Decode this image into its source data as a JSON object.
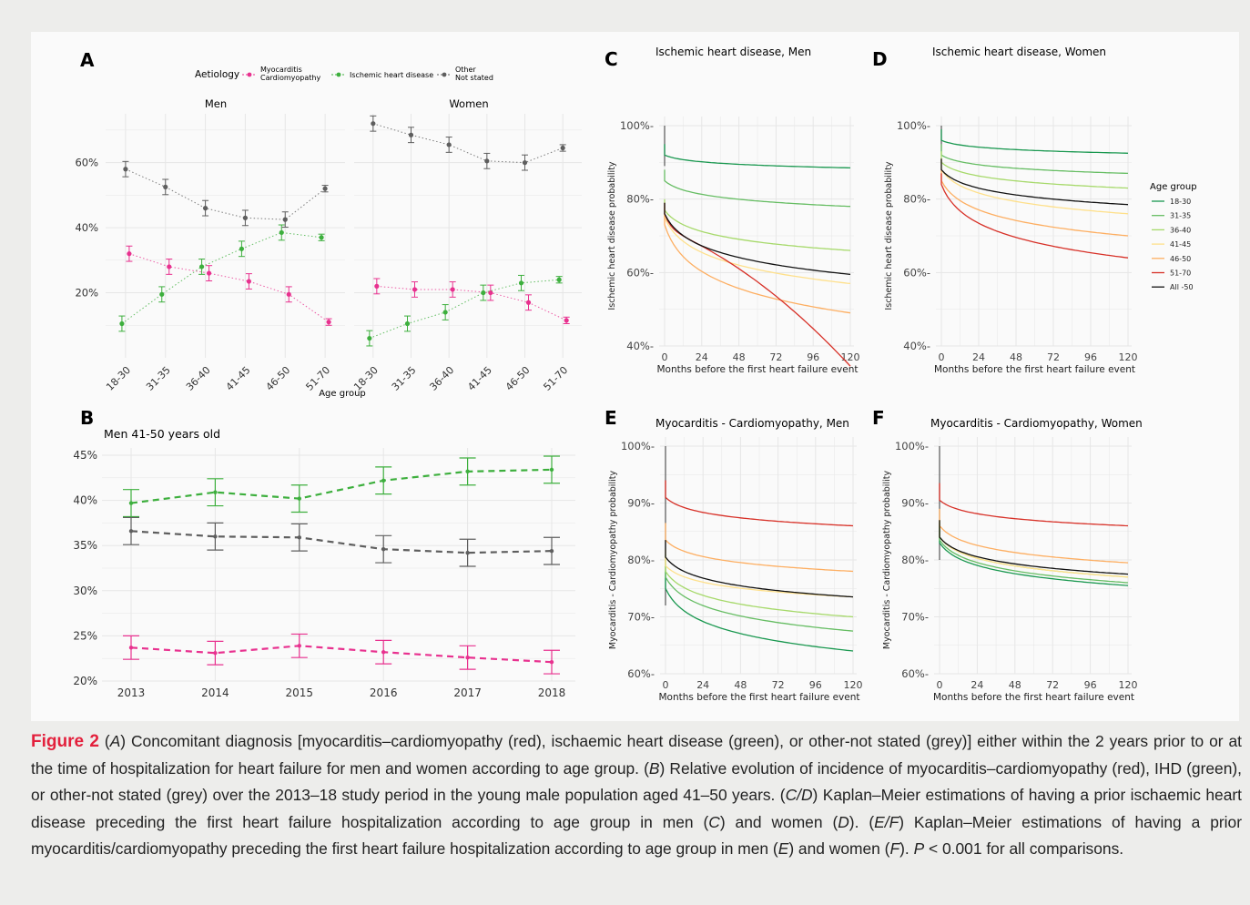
{
  "colors": {
    "myo": "#e8318f",
    "ihd": "#3daf3d",
    "other": "#5e5e5e",
    "grid": "#e6e6e6",
    "caption_accent": "#e3203c"
  },
  "panels": {
    "A": {
      "letter": "A",
      "legend_title": "Aetiology",
      "legend": [
        "Myocarditis\nCardiomyopathy",
        "Ischemic heart disease",
        "Other\nNot stated"
      ],
      "facets": [
        "Men",
        "Women"
      ],
      "xlabel": "Age group",
      "categories": [
        "18-30",
        "31-35",
        "36-40",
        "41-45",
        "46-50",
        "51-70"
      ],
      "y_ticks": [
        "20%",
        "40%",
        "60%"
      ]
    },
    "B": {
      "letter": "B",
      "subtitle": "Men 41-50 years old",
      "x_ticks": [
        "2013",
        "2014",
        "2015",
        "2016",
        "2017",
        "2018"
      ],
      "y_ticks": [
        "20%",
        "25%",
        "30%",
        "35%",
        "40%",
        "45%"
      ]
    },
    "C": {
      "letter": "C",
      "title": "Ischemic heart disease, Men",
      "ylabel": "Ischemic heart disease probability",
      "xlabel": "Months before the first heart failure event"
    },
    "D": {
      "letter": "D",
      "title": "Ischemic heart disease, Women",
      "ylabel": "Ischemic heart disease probability",
      "xlabel": "Months before the first heart failure event",
      "legend_title": "Age group",
      "legend": [
        "18-30",
        "31-35",
        "36-40",
        "41-45",
        "46-50",
        "51-70",
        "All -50"
      ]
    },
    "E": {
      "letter": "E",
      "title": "Myocarditis - Cardiomyopathy, Men",
      "ylabel": "Myocarditis - Cardiomyopathy probability",
      "xlabel": "Months before the first heart failure event"
    },
    "F": {
      "letter": "F",
      "title": "Myocarditis - Cardiomyopathy, Women",
      "ylabel": "Myocarditis - Cardiomyopathy probability",
      "xlabel": "Months before the first heart failure event"
    }
  },
  "km_x_ticks": [
    "0",
    "24",
    "48",
    "72",
    "96",
    "120"
  ],
  "km_y_ticks_ihd": [
    "40%",
    "60%",
    "80%",
    "100%"
  ],
  "km_y_ticks_myo": [
    "60%",
    "70%",
    "80%",
    "90%",
    "100%"
  ],
  "age_colors": [
    "#1a9850",
    "#66bd63",
    "#a6d96a",
    "#fee08b",
    "#fdae61",
    "#d73027",
    "#111111"
  ],
  "chart_data": [
    {
      "type": "scatter",
      "panel": "A",
      "facet": "Men",
      "categories": [
        "18-30",
        "31-35",
        "36-40",
        "41-45",
        "46-50",
        "51-70"
      ],
      "ylim": [
        0,
        75
      ],
      "series": [
        {
          "name": "Myocarditis Cardiomyopathy",
          "values": [
            32,
            28,
            26,
            23.5,
            19.5,
            11
          ]
        },
        {
          "name": "Ischemic heart disease",
          "values": [
            10.5,
            19.5,
            28,
            33.5,
            38.5,
            37
          ]
        },
        {
          "name": "Other Not stated",
          "values": [
            58,
            52.5,
            46,
            43,
            42.5,
            52
          ]
        }
      ]
    },
    {
      "type": "scatter",
      "panel": "A",
      "facet": "Women",
      "categories": [
        "18-30",
        "31-35",
        "36-40",
        "41-45",
        "46-50",
        "51-70"
      ],
      "ylim": [
        0,
        75
      ],
      "series": [
        {
          "name": "Myocarditis Cardiomyopathy",
          "values": [
            22,
            21,
            21,
            20,
            17,
            11.5
          ]
        },
        {
          "name": "Ischemic heart disease",
          "values": [
            6,
            10.5,
            14,
            20,
            23,
            24
          ]
        },
        {
          "name": "Other Not stated",
          "values": [
            72,
            68.5,
            65.5,
            60.5,
            60,
            64.5
          ]
        }
      ]
    },
    {
      "type": "line",
      "panel": "B",
      "x": [
        2013,
        2014,
        2015,
        2016,
        2017,
        2018
      ],
      "ylim": [
        20,
        45
      ],
      "series": [
        {
          "name": "Ischemic heart disease",
          "values": [
            39.7,
            40.9,
            40.2,
            42.2,
            43.2,
            43.4
          ],
          "err": 1.5
        },
        {
          "name": "Other Not stated",
          "values": [
            36.6,
            36.0,
            35.9,
            34.6,
            34.2,
            34.4
          ],
          "err": 1.5
        },
        {
          "name": "Myocarditis Cardiomyopathy",
          "values": [
            23.7,
            23.1,
            23.9,
            23.2,
            22.6,
            22.1
          ],
          "err": 1.3
        }
      ]
    },
    {
      "type": "line",
      "panel": "C",
      "xlim": [
        0,
        120
      ],
      "ylim": [
        40,
        100
      ],
      "series": [
        {
          "name": "18-30",
          "start": 92,
          "end": 88.5
        },
        {
          "name": "31-35",
          "start": 85,
          "end": 78
        },
        {
          "name": "36-40",
          "start": 77,
          "end": 66
        },
        {
          "name": "41-45",
          "start": 75,
          "end": 57
        },
        {
          "name": "46-50",
          "start": 73,
          "end": 49
        },
        {
          "name": "51-70",
          "start": 76,
          "end": 38.5
        },
        {
          "name": "All -50",
          "start": 76,
          "end": 59.5
        }
      ]
    },
    {
      "type": "line",
      "panel": "D",
      "xlim": [
        0,
        120
      ],
      "ylim": [
        40,
        100
      ],
      "series": [
        {
          "name": "18-30",
          "start": 96,
          "end": 92.5
        },
        {
          "name": "31-35",
          "start": 92,
          "end": 87
        },
        {
          "name": "36-40",
          "start": 90,
          "end": 83
        },
        {
          "name": "41-45",
          "start": 88,
          "end": 76
        },
        {
          "name": "46-50",
          "start": 85,
          "end": 70
        },
        {
          "name": "51-70",
          "start": 84,
          "end": 64
        },
        {
          "name": "All -50",
          "start": 88,
          "end": 78.5
        }
      ]
    },
    {
      "type": "line",
      "panel": "E",
      "xlim": [
        0,
        120
      ],
      "ylim": [
        60,
        100
      ],
      "series": [
        {
          "name": "18-30",
          "start": 75,
          "end": 64
        },
        {
          "name": "31-35",
          "start": 77,
          "end": 67.5
        },
        {
          "name": "36-40",
          "start": 78,
          "end": 70
        },
        {
          "name": "41-45",
          "start": 79,
          "end": 73.5
        },
        {
          "name": "46-50",
          "start": 83.5,
          "end": 78
        },
        {
          "name": "51-70",
          "start": 91,
          "end": 86
        },
        {
          "name": "All -50",
          "start": 80.5,
          "end": 73.5
        }
      ]
    },
    {
      "type": "line",
      "panel": "F",
      "xlim": [
        0,
        120
      ],
      "ylim": [
        60,
        100
      ],
      "series": [
        {
          "name": "18-30",
          "start": 83,
          "end": 75.5
        },
        {
          "name": "31-35",
          "start": 83.5,
          "end": 76
        },
        {
          "name": "36-40",
          "start": 84,
          "end": 77
        },
        {
          "name": "41-45",
          "start": 84,
          "end": 77
        },
        {
          "name": "46-50",
          "start": 86,
          "end": 79.5
        },
        {
          "name": "51-70",
          "start": 90.5,
          "end": 86
        },
        {
          "name": "All -50",
          "start": 84,
          "end": 77.5
        }
      ]
    }
  ],
  "caption": {
    "label": "Figure 2",
    "text": [
      {
        "t": " ("
      },
      {
        "t": "A",
        "i": true
      },
      {
        "t": ") Concomitant diagnosis [myocarditis–cardiomyopathy (red), ischaemic heart disease (green), or other-not stated (grey)] either within the 2 years prior to or at the time of hospitalization for heart failure for men and women according to age group. ("
      },
      {
        "t": "B",
        "i": true
      },
      {
        "t": ") Relative evolution of incidence of myocarditis–cardiomyopathy (red), IHD (green), or other-not stated (grey) over the 2013–18 study period in the young male population aged 41–50 years. ("
      },
      {
        "t": "C/D",
        "i": true
      },
      {
        "t": ") Kaplan–Meier estimations of having a prior ischaemic heart disease preceding the first heart failure hospitalization according to age group in men ("
      },
      {
        "t": "C",
        "i": true
      },
      {
        "t": ") and women ("
      },
      {
        "t": "D",
        "i": true
      },
      {
        "t": "). ("
      },
      {
        "t": "E/F",
        "i": true
      },
      {
        "t": ") Kaplan–Meier estimations of having a prior myocarditis/cardiomyopathy preceding the first heart failure hospitalization according to age group in men ("
      },
      {
        "t": "E",
        "i": true
      },
      {
        "t": ") and women ("
      },
      {
        "t": "F",
        "i": true
      },
      {
        "t": "). "
      },
      {
        "t": "P",
        "i": true
      },
      {
        "t": " < 0.001 for all comparisons."
      }
    ]
  }
}
